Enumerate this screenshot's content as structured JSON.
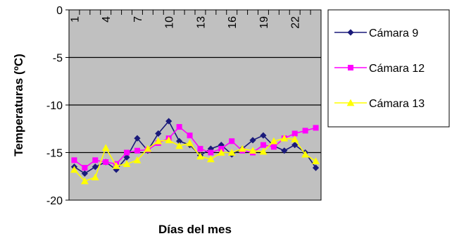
{
  "chart_data": {
    "type": "line",
    "title": "",
    "xlabel": "Días del mes",
    "ylabel": "Temperaturas (ºC)",
    "ylim": [
      -20,
      0
    ],
    "yticks": [
      0,
      -5,
      -10,
      -15,
      -20
    ],
    "x": [
      1,
      2,
      3,
      4,
      5,
      6,
      7,
      8,
      9,
      10,
      11,
      12,
      13,
      14,
      15,
      16,
      17,
      18,
      19,
      20,
      21,
      22,
      23,
      24
    ],
    "xtick_labels": [
      "1",
      "4",
      "7",
      "10",
      "13",
      "16",
      "19",
      "22"
    ],
    "xtick_values": [
      1,
      4,
      7,
      10,
      13,
      16,
      19,
      22
    ],
    "grid": "horizontal",
    "background": "#c0c0c0",
    "legend_position": "right",
    "series": [
      {
        "name": "Cámara 9",
        "color": "#1a1a7a",
        "marker": "diamond",
        "values": [
          -16.5,
          -17.2,
          -16.5,
          -16.0,
          -16.8,
          -15.5,
          -13.5,
          -14.8,
          -13.0,
          -11.7,
          -13.8,
          -14.2,
          -15.3,
          -14.6,
          -14.2,
          -15.2,
          -14.6,
          -13.7,
          -13.2,
          -14.3,
          -14.8,
          -14.2,
          -15.0,
          -16.6
        ]
      },
      {
        "name": "Cámara 12",
        "color": "#ff00ff",
        "marker": "square",
        "values": [
          -15.8,
          -16.6,
          -15.8,
          -16.0,
          -16.2,
          -15.0,
          -14.8,
          -14.7,
          -14.0,
          -13.5,
          -12.3,
          -13.2,
          -14.6,
          -15.0,
          -14.6,
          -13.8,
          -14.8,
          -15.0,
          -14.2,
          -14.4,
          -13.5,
          -13.0,
          -12.7,
          -12.4
        ]
      },
      {
        "name": "Cámara 13",
        "color": "#ffff00",
        "marker": "triangle",
        "values": [
          -16.8,
          -18.0,
          -17.6,
          -14.5,
          -16.4,
          -16.2,
          -15.8,
          -14.6,
          -13.8,
          -13.7,
          -14.3,
          -14.0,
          -15.4,
          -15.7,
          -15.0,
          -15.0,
          -14.6,
          -14.8,
          -14.9,
          -13.8,
          -13.5,
          -13.6,
          -15.2,
          -15.9
        ]
      }
    ]
  }
}
